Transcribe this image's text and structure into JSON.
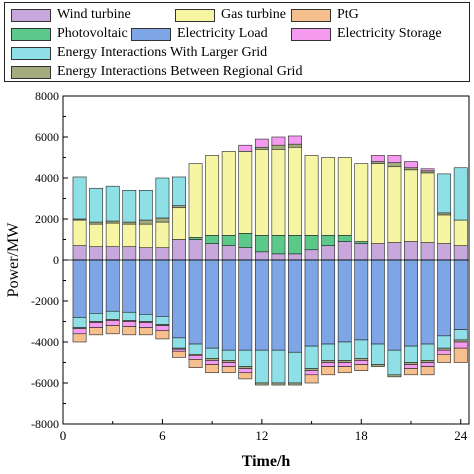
{
  "chart_data": {
    "type": "bar",
    "stacked": true,
    "xlabel": "Time/h",
    "ylabel": "Power/MW",
    "xlim": [
      0,
      24.5
    ],
    "ylim": [
      -8000,
      8000
    ],
    "xticks": [
      0,
      6,
      12,
      18,
      24
    ],
    "yticks": [
      -8000,
      -6000,
      -4000,
      -2000,
      0,
      2000,
      4000,
      6000,
      8000
    ],
    "grid": false,
    "legend_position": "top",
    "x": [
      1,
      2,
      3,
      4,
      5,
      6,
      7,
      8,
      9,
      10,
      11,
      12,
      13,
      14,
      15,
      16,
      17,
      18,
      19,
      20,
      21,
      22,
      23,
      24
    ],
    "series": [
      {
        "name": "Wind turbine",
        "color": "#c8a8dc",
        "sign": "positive",
        "values": [
          700,
          650,
          650,
          650,
          600,
          600,
          1000,
          1000,
          800,
          700,
          600,
          400,
          300,
          300,
          500,
          700,
          900,
          800,
          800,
          850,
          900,
          850,
          800,
          700
        ]
      },
      {
        "name": "Photovoltaic",
        "color": "#5cc98a",
        "sign": "positive",
        "values": [
          0,
          0,
          0,
          0,
          0,
          0,
          0,
          100,
          400,
          500,
          700,
          800,
          900,
          900,
          700,
          500,
          300,
          100,
          0,
          0,
          0,
          0,
          0,
          0
        ]
      },
      {
        "name": "Gas turbine",
        "color": "#f5f5a3",
        "sign": "positive",
        "values": [
          1250,
          1100,
          1150,
          1100,
          1150,
          1250,
          1550,
          3600,
          3900,
          4100,
          4000,
          4200,
          4200,
          4300,
          3900,
          3800,
          3800,
          3800,
          3900,
          3700,
          3500,
          3400,
          1400,
          1250
        ]
      },
      {
        "name": "Energy Interactions Between Regional Grid",
        "color": "#a3ac7f",
        "sign": "positive",
        "values": [
          50,
          100,
          100,
          100,
          200,
          200,
          100,
          0,
          0,
          0,
          0,
          100,
          200,
          150,
          0,
          0,
          0,
          0,
          100,
          200,
          100,
          100,
          100,
          0
        ]
      },
      {
        "name": "Energy Interactions With Larger Grid",
        "color": "#8fe0e6",
        "sign": "positive",
        "values": [
          2050,
          1650,
          1700,
          1550,
          1450,
          1950,
          1400,
          0,
          0,
          0,
          0,
          0,
          0,
          0,
          0,
          0,
          0,
          0,
          0,
          0,
          0,
          0,
          1900,
          2550
        ]
      },
      {
        "name": "Electricity Storage",
        "color": "#f49bf0",
        "sign": "positive",
        "values": [
          0,
          0,
          0,
          0,
          0,
          0,
          0,
          0,
          0,
          0,
          300,
          400,
          400,
          400,
          0,
          0,
          0,
          0,
          300,
          350,
          300,
          100,
          0,
          0
        ]
      },
      {
        "name": "Electricity Load",
        "color": "#7ea6e6",
        "sign": "negative",
        "values": [
          -2800,
          -2600,
          -2500,
          -2550,
          -2650,
          -2750,
          -3800,
          -4100,
          -4300,
          -4400,
          -4400,
          -4400,
          -4400,
          -4500,
          -4200,
          -4100,
          -4000,
          -3900,
          -4100,
          -4400,
          -4200,
          -4100,
          -3700,
          -3400
        ]
      },
      {
        "name": "Energy Interactions With Larger Grid",
        "color": "#8fe0e6",
        "sign": "negative",
        "values": [
          -500,
          -400,
          -400,
          -400,
          -350,
          -400,
          -500,
          -500,
          -500,
          -500,
          -800,
          -1600,
          -1600,
          -1500,
          -1100,
          -800,
          -900,
          -900,
          -1000,
          -1200,
          -800,
          -800,
          -600,
          -500
        ]
      },
      {
        "name": "Energy Interactions Between Regional Grid",
        "color": "#a3ac7f",
        "sign": "negative",
        "values": [
          -50,
          -50,
          -50,
          -50,
          -50,
          -50,
          -50,
          -50,
          -100,
          -100,
          -100,
          -100,
          -100,
          -100,
          -100,
          -100,
          -100,
          -100,
          -100,
          -100,
          -100,
          -100,
          -100,
          -100
        ]
      },
      {
        "name": "Electricity Storage",
        "color": "#f49bf0",
        "sign": "negative",
        "values": [
          -250,
          -250,
          -250,
          -250,
          -250,
          -250,
          -100,
          -200,
          -200,
          -200,
          -200,
          0,
          0,
          0,
          -200,
          -200,
          -200,
          -200,
          0,
          0,
          -200,
          -200,
          -200,
          -300
        ]
      },
      {
        "name": "PtG",
        "color": "#f6c08e",
        "sign": "negative",
        "values": [
          -400,
          -350,
          -400,
          -400,
          -350,
          -400,
          -300,
          -400,
          -400,
          -300,
          -300,
          0,
          0,
          0,
          -400,
          -400,
          -300,
          -300,
          0,
          0,
          -300,
          -400,
          -400,
          -700
        ]
      }
    ],
    "legend": [
      {
        "label": "Wind turbine",
        "color": "#c8a8dc"
      },
      {
        "label": "Gas turbine",
        "color": "#f5f5a3"
      },
      {
        "label": "PtG",
        "color": "#f6c08e"
      },
      {
        "label": "Photovoltaic",
        "color": "#5cc98a"
      },
      {
        "label": "Electricity Load",
        "color": "#7ea6e6"
      },
      {
        "label": "Electricity Storage",
        "color": "#f49bf0"
      },
      {
        "label": "Energy Interactions With Larger Grid",
        "color": "#8fe0e6"
      },
      {
        "label": "Energy Interactions Between Regional Grid",
        "color": "#a3ac7f"
      }
    ]
  }
}
